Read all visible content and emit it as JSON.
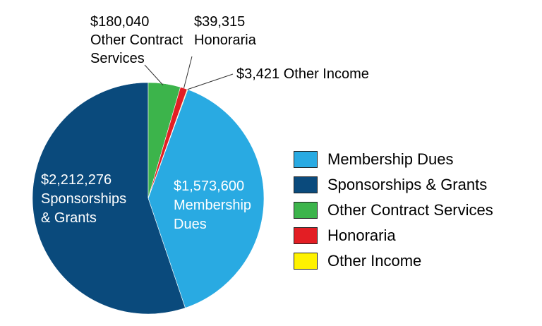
{
  "chart_data": {
    "type": "pie",
    "title": "",
    "legend_position": "right",
    "slices": [
      {
        "name": "Membership Dues",
        "value": 1573600,
        "color": "#29aae2",
        "label_lines": [
          "$1,573,600",
          "Membership",
          "Dues"
        ]
      },
      {
        "name": "Sponsorships & Grants",
        "value": 2212276,
        "color": "#0a4a7c",
        "label_lines": [
          "$2,212,276",
          "Sponsorships",
          "& Grants"
        ]
      },
      {
        "name": "Other Contract Services",
        "value": 180040,
        "color": "#3cb44b",
        "label_lines": [
          "$180,040",
          "Other Contract",
          "Services"
        ]
      },
      {
        "name": "Honoraria",
        "value": 39315,
        "color": "#e31e24",
        "label_lines": [
          "$39,315",
          "Honoraria"
        ]
      },
      {
        "name": "Other Income",
        "value": 3421,
        "color": "#fff200",
        "label_lines": [
          "$3,421 Other Income"
        ]
      }
    ]
  }
}
